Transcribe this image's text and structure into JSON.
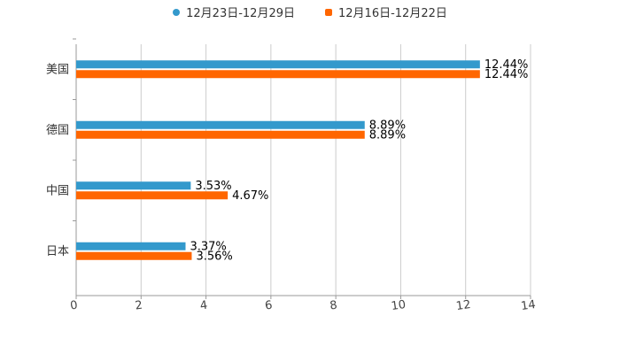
{
  "chart_data": {
    "type": "bar",
    "orientation": "horizontal",
    "categories": [
      "美国",
      "德国",
      "中国",
      "日本"
    ],
    "series": [
      {
        "name": "12月23日-12月29日",
        "color": "#3399cc",
        "values": [
          12.44,
          8.89,
          3.53,
          3.37
        ],
        "labels": [
          "12.44%",
          "8.89%",
          "3.53%",
          "3.37%"
        ]
      },
      {
        "name": "12月16日-12月22日",
        "color": "#ff6600",
        "values": [
          12.44,
          8.89,
          4.67,
          3.56
        ],
        "labels": [
          "12.44%",
          "8.89%",
          "4.67%",
          "3.56%"
        ]
      }
    ],
    "x_ticks": [
      "0",
      "2",
      "4",
      "6",
      "8",
      "10",
      "12",
      "14"
    ],
    "xlim": [
      0,
      14
    ],
    "grid": true,
    "legend": "top-center"
  }
}
